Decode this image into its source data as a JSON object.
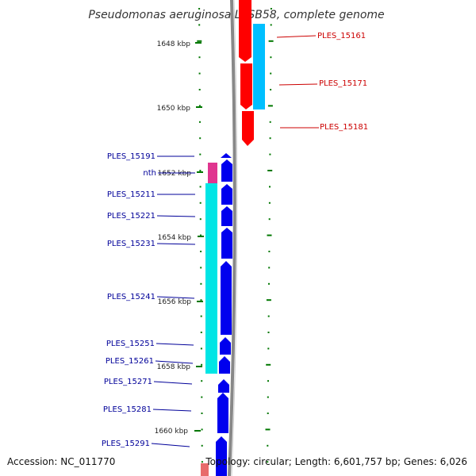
{
  "title": "Pseudomonas aeruginosa LESB58, complete genome",
  "footer": {
    "accession": "Accession: NC_011770",
    "summary": "Topology: circular; Length: 6,601,757 bp; Genes: 6,026"
  },
  "colors": {
    "forward_gene": "#ff0000",
    "forward_cds": "#00bfff",
    "reverse_gene": "#0000ee",
    "reverse_cds": "#00e5e5",
    "rna_feature": "#e0358f",
    "forward_label": "#cc0000",
    "reverse_label": "#000099",
    "tick": "#007700",
    "backbone": "#888888"
  },
  "kbp_ticks": [
    "1648 kbp",
    "1650 kbp",
    "1652 kbp",
    "1654 kbp",
    "1656 kbp",
    "1658 kbp",
    "1660 kbp"
  ],
  "forward_features": [
    "PLES_15161",
    "PLES_15171",
    "PLES_15181"
  ],
  "reverse_features": [
    "PLES_15191",
    "nth",
    "PLES_15211",
    "PLES_15221",
    "PLES_15231",
    "PLES_15241",
    "PLES_15251",
    "PLES_15261",
    "PLES_15271",
    "PLES_15281",
    "PLES_15291"
  ]
}
